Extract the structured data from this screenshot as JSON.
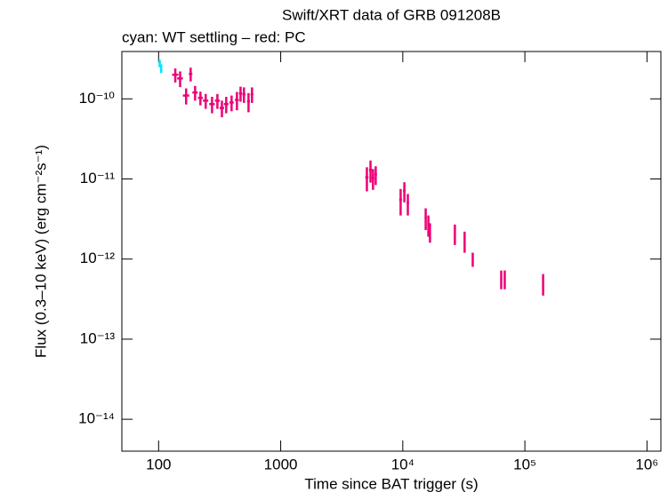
{
  "chart_data": {
    "type": "scatter",
    "title": "Swift/XRT data of GRB 091208B",
    "subtitle": "cyan: WT settling – red: PC",
    "x_label": "Time since BAT trigger (s)",
    "y_label": "Flux (0.3–10 keV) (erg cm⁻²s⁻¹)",
    "xlog": true,
    "ylog": true,
    "xlim": [
      50,
      1300000
    ],
    "ylim": [
      4e-15,
      3.9e-10
    ],
    "xticks": [
      100,
      1000,
      {
        "value": 10000,
        "label": "10⁴"
      },
      {
        "value": 100000,
        "label": "10⁵"
      },
      {
        "value": 1000000,
        "label": "10⁶"
      }
    ],
    "yticks": [
      {
        "value": 1e-14,
        "label": "10⁻¹⁴"
      },
      {
        "value": 1e-13,
        "label": "10⁻¹³"
      },
      {
        "value": 1e-12,
        "label": "10⁻¹²"
      },
      {
        "value": 1e-11,
        "label": "10⁻¹¹"
      },
      {
        "value": 1e-10,
        "label": "10⁻¹⁰"
      }
    ],
    "series": [
      {
        "name": "WT settling",
        "color": "#00e5ff",
        "x": [
          102,
          105
        ],
        "xerr": [
          2,
          2
        ],
        "values": [
          2.78e-10,
          2.4e-10
        ],
        "yerr": [
          3e-11,
          3e-11
        ]
      },
      {
        "name": "PC",
        "color": "#ee0077",
        "x": [
          137,
          150,
          183,
          168,
          199,
          220,
          243,
          274,
          303,
          330,
          358,
          396,
          438,
          469,
          500,
          545,
          582,
          5080,
          5440,
          5700,
          6000,
          9600,
          10300,
          11000,
          15400,
          16200,
          16700,
          26700,
          32100,
          37400,
          64000,
          68400,
          141000
        ],
        "xerr": [
          8,
          8,
          6,
          10,
          10,
          10,
          12,
          14,
          14,
          14,
          15,
          16,
          16,
          14,
          14,
          15,
          15,
          150,
          150,
          150,
          150,
          250,
          250,
          250,
          300,
          300,
          300,
          400,
          400,
          500,
          1200,
          1200,
          2000
        ],
        "values": [
          2e-10,
          1.8e-10,
          2.05e-10,
          1.1e-10,
          1.2e-10,
          1.03e-10,
          9.5e-11,
          8.6e-11,
          9.5e-11,
          7.7e-11,
          8.6e-11,
          9e-11,
          9.7e-11,
          1.17e-10,
          1.14e-10,
          9.3e-11,
          1.14e-10,
          1.05e-11,
          1.3e-11,
          1.03e-11,
          1.14e-11,
          5.5e-12,
          7.1e-12,
          5e-12,
          3.3e-12,
          2.7e-12,
          2.2e-12,
          2.1e-12,
          1.7e-12,
          1e-12,
          5.7e-13,
          5.7e-13,
          5e-13
        ],
        "yerr": [
          4e-11,
          4e-11,
          4e-11,
          2.5e-11,
          2.5e-11,
          2e-11,
          2e-11,
          2e-11,
          2e-11,
          1.8e-11,
          2e-11,
          2e-11,
          2.5e-11,
          2.5e-11,
          2.5e-11,
          2.5e-11,
          2.5e-11,
          3.5e-12,
          4e-12,
          3e-12,
          3e-12,
          2e-12,
          2e-12,
          1.5e-12,
          1e-12,
          8e-13,
          6e-13,
          6e-13,
          5e-13,
          2e-13,
          1.5e-13,
          1.5e-13,
          1.5e-13
        ]
      }
    ]
  }
}
